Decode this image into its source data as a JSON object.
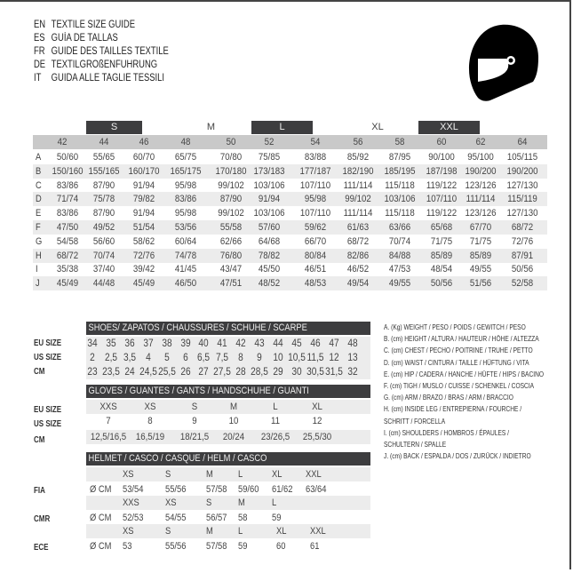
{
  "titles": [
    {
      "lang": "EN",
      "text": "TEXTILE SIZE GUIDE"
    },
    {
      "lang": "ES",
      "text": "GUÍA DE TALLAS"
    },
    {
      "lang": "FR",
      "text": "GUIDE DES TAILLES TEXTILE"
    },
    {
      "lang": "DE",
      "text": "TEXTILGRÖßENFÜHRUNG"
    },
    {
      "lang": "IT",
      "text": "GUIDA ALLE TAGLIE TESSILI"
    }
  ],
  "icon": "motorcycle-helmet-icon",
  "colors": {
    "dark_bar": "#3d3d3f",
    "gray_bar": "#c9c9c9",
    "row_shade": "#ececec"
  },
  "textile": {
    "size_groups": [
      "S",
      "M",
      "L",
      "XL",
      "XXL"
    ],
    "sizes": [
      "42",
      "44",
      "46",
      "48",
      "50",
      "52",
      "54",
      "56",
      "58",
      "60",
      "62",
      "64"
    ],
    "rows": [
      {
        "label": "A",
        "values": [
          "50/60",
          "55/65",
          "60/70",
          "65/75",
          "70/80",
          "75/85",
          "83/88",
          "85/92",
          "87/95",
          "90/100",
          "95/100",
          "105/115"
        ]
      },
      {
        "label": "B",
        "values": [
          "150/160",
          "155/165",
          "160/170",
          "165/175",
          "170/180",
          "173/183",
          "177/187",
          "182/190",
          "185/195",
          "187/198",
          "190/200",
          "190/200"
        ]
      },
      {
        "label": "C",
        "values": [
          "83/86",
          "87/90",
          "91/94",
          "95/98",
          "99/102",
          "103/106",
          "107/110",
          "111/114",
          "115/118",
          "119/122",
          "123/126",
          "127/130"
        ]
      },
      {
        "label": "D",
        "values": [
          "71/74",
          "75/78",
          "79/82",
          "83/86",
          "87/90",
          "91/94",
          "95/98",
          "99/102",
          "103/106",
          "107/110",
          "111/114",
          "115/119"
        ]
      },
      {
        "label": "E",
        "values": [
          "83/86",
          "87/90",
          "91/94",
          "95/98",
          "99/102",
          "103/106",
          "107/110",
          "111/114",
          "115/118",
          "119/122",
          "123/126",
          "127/130"
        ]
      },
      {
        "label": "F",
        "values": [
          "47/50",
          "49/52",
          "51/54",
          "53/56",
          "55/58",
          "57/60",
          "59/62",
          "61/63",
          "63/66",
          "65/68",
          "67/70",
          "68/72"
        ]
      },
      {
        "label": "G",
        "values": [
          "54/58",
          "56/60",
          "58/62",
          "60/64",
          "62/66",
          "64/68",
          "66/70",
          "68/72",
          "70/74",
          "71/75",
          "71/75",
          "72/76"
        ]
      },
      {
        "label": "H",
        "values": [
          "68/72",
          "70/74",
          "72/76",
          "74/78",
          "76/80",
          "78/82",
          "80/84",
          "82/86",
          "84/88",
          "85/89",
          "85/89",
          "87/91"
        ]
      },
      {
        "label": "I",
        "values": [
          "35/38",
          "37/40",
          "39/42",
          "41/45",
          "43/47",
          "45/50",
          "46/51",
          "46/52",
          "47/53",
          "48/54",
          "49/55",
          "50/56"
        ]
      },
      {
        "label": "J",
        "values": [
          "45/49",
          "44/48",
          "45/49",
          "46/50",
          "47/51",
          "48/52",
          "48/53",
          "49/54",
          "49/55",
          "50/56",
          "51/56",
          "52/58"
        ]
      }
    ]
  },
  "shoes": {
    "header": "SHOES/ ZAPATOS / CHAUSSURES / SCHUHE / SCARPE",
    "rows": [
      {
        "label": "EU SIZE",
        "values": [
          "34",
          "35",
          "36",
          "37",
          "38",
          "39",
          "40",
          "41",
          "42",
          "43",
          "44",
          "45",
          "46",
          "47",
          "48"
        ]
      },
      {
        "label": "US SIZE",
        "values": [
          "2",
          "2,5",
          "3,5",
          "4",
          "5",
          "6",
          "6,5",
          "7,5",
          "8",
          "9",
          "10",
          "10,5",
          "11,5",
          "12",
          "13"
        ]
      },
      {
        "label": "CM",
        "values": [
          "23",
          "23,5",
          "24",
          "24,5",
          "25,5",
          "26",
          "27",
          "27,5",
          "28",
          "28,5",
          "29",
          "30",
          "30,5",
          "31,5",
          "32"
        ]
      }
    ]
  },
  "gloves": {
    "header": "GLOVES / GUANTES / GANTS / HANDSCHUHE / GUANTI",
    "rows": [
      {
        "label": "EU SIZE",
        "values": [
          "XXS",
          "XS",
          "S",
          "M",
          "L",
          "XL"
        ]
      },
      {
        "label": "US SIZE",
        "values": [
          "7",
          "8",
          "9",
          "10",
          "11",
          "12"
        ]
      },
      {
        "label": "CM",
        "values": [
          "12,5/16,5",
          "16,5/19",
          "18/21,5",
          "20/24",
          "23/26,5",
          "25,5/30"
        ]
      }
    ]
  },
  "helmet": {
    "header": "HELMET / CASCO / CASQUE / HELM / CASCO",
    "unit": "Ø CM",
    "standards": [
      {
        "label": "FIA",
        "sizes": [
          "XS",
          "S",
          "M",
          "L",
          "XL",
          "XXL"
        ],
        "values": [
          "53/54",
          "55/56",
          "57/58",
          "59/60",
          "61/62",
          "63/64"
        ]
      },
      {
        "label": "CMR",
        "sizes": [
          "XXS",
          "XS",
          "S",
          "M",
          "L"
        ],
        "values": [
          "52/53",
          "54/55",
          "56/57",
          "58",
          "59"
        ]
      },
      {
        "label": "ECE",
        "sizes": [
          "XS",
          "S",
          "M",
          "L",
          "XL",
          "XXL"
        ],
        "values": [
          "53",
          "55/56",
          "57/58",
          "59",
          "60",
          "61"
        ]
      }
    ]
  },
  "legend": [
    "A. (Kg) WEIGHT / PESO / POIDS / GEWITCH / PESO",
    "B. (cm) HEIGHT / ALTURA / HAUTEUR / HÖHE / ALTEZZA",
    "C. (cm) CHEST / PECHO / POITRINE / TRUHE / PETTO",
    "D. (cm) WAIST / CINTURA / TAILLE / HÜFTUNG / VITA",
    "E. (cm) HIP / CADERA / HANCHE / HÜFTE / HIPS / BACINO",
    "F. (cm) TIGH / MUSLO / CUISSE / SCHENKEL / COSCIA",
    "G. (cm) ARM / BRAZO / BRAS / ARM / BRACCIO",
    "H. (cm) INSIDE LEG / ENTREPIERNA / FOURCHE /",
    "SCHRITT / FORCELLA",
    "I. (cm) SHOULDERS / HOMBROS / ÉPAULES /",
    "SCHULTERN / SPALLE",
    "J. (cm) BACK / ESPALDA / DOS / ZURÜCK / INDIETRO"
  ]
}
